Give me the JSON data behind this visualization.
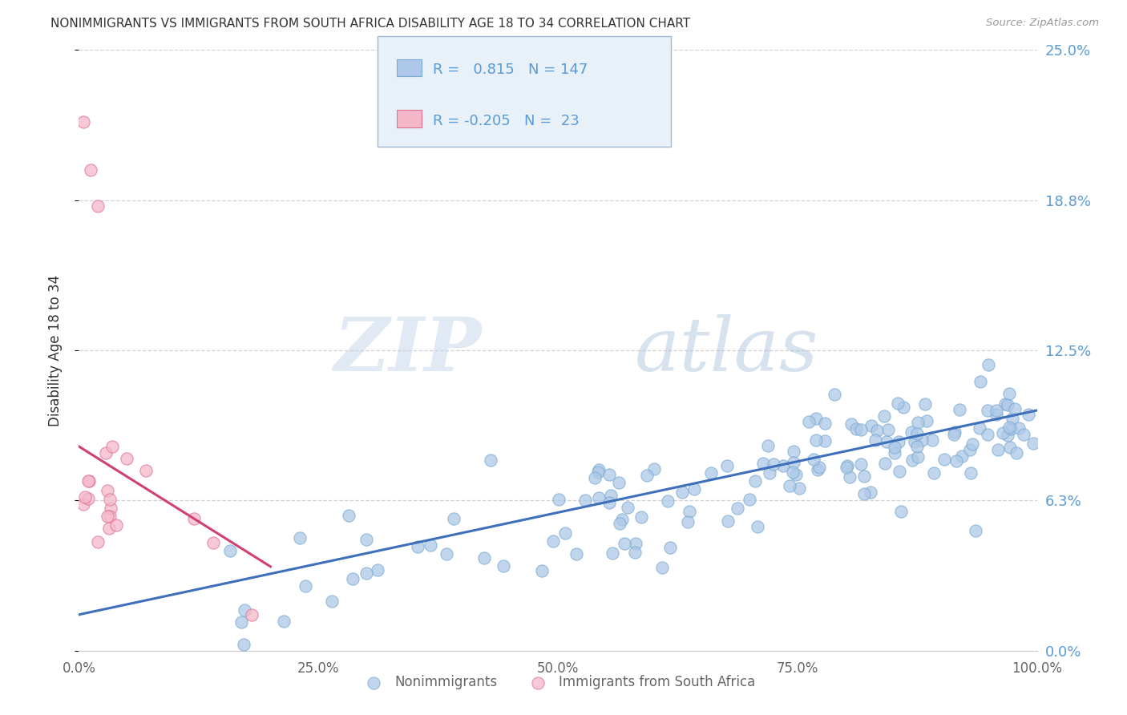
{
  "title": "NONIMMIGRANTS VS IMMIGRANTS FROM SOUTH AFRICA DISABILITY AGE 18 TO 34 CORRELATION CHART",
  "source": "Source: ZipAtlas.com",
  "ylabel": "Disability Age 18 to 34",
  "xlim": [
    0.0,
    100.0
  ],
  "ylim": [
    0.0,
    25.0
  ],
  "ytick_vals": [
    0.0,
    6.25,
    12.5,
    18.75,
    25.0
  ],
  "ytick_labels": [
    "0.0%",
    "6.3%",
    "12.5%",
    "18.8%",
    "25.0%"
  ],
  "xtick_vals": [
    0.0,
    25.0,
    50.0,
    75.0,
    100.0
  ],
  "xtick_labels": [
    "0.0%",
    "25.0%",
    "50.0%",
    "75.0%",
    "100.0%"
  ],
  "nonimmigrants": {
    "R": 0.815,
    "N": 147,
    "color": "#adc8e8",
    "edge_color": "#7aaacf",
    "line_color": "#3d6fba",
    "label": "Nonimmigrants"
  },
  "immigrants": {
    "R": -0.205,
    "N": 23,
    "color": "#f5b8ca",
    "edge_color": "#de7090",
    "line_color": "#d04070",
    "label": "Immigrants from South Africa"
  },
  "watermark_zip": "ZIP",
  "watermark_atlas": "atlas",
  "background_color": "#ffffff",
  "grid_color": "#cccccc",
  "title_color": "#333333",
  "right_yaxis_color": "#5b9bd5",
  "legend_bg": "#e8f0f8",
  "legend_border": "#a0b8d0"
}
